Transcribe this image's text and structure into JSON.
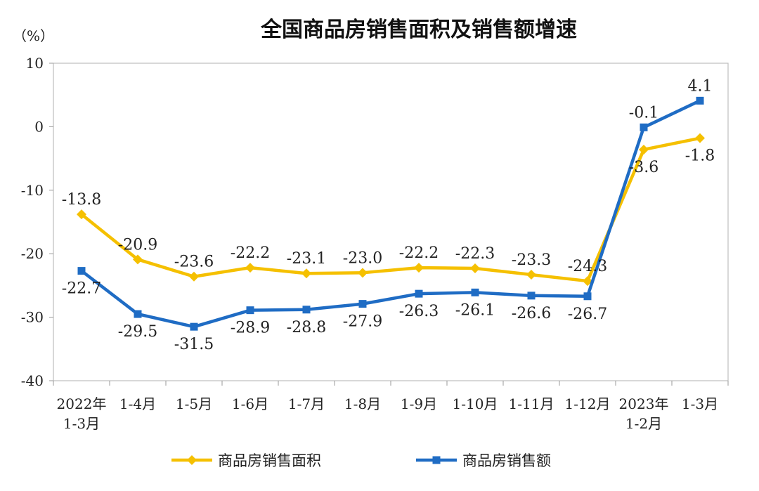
{
  "chart_data": {
    "type": "line",
    "title": "全国商品房销售面积及销售额增速",
    "unit_label": "（%）",
    "ylim": [
      -40,
      10
    ],
    "yticks": [
      "10",
      "0",
      "-10",
      "-20",
      "-30",
      "-40"
    ],
    "ytick_values": [
      10,
      0,
      -10,
      -20,
      -30,
      -40
    ],
    "categories": [
      [
        "2022年",
        "1-3月"
      ],
      [
        "1-4月"
      ],
      [
        "1-5月"
      ],
      [
        "1-6月"
      ],
      [
        "1-7月"
      ],
      [
        "1-8月"
      ],
      [
        "1-9月"
      ],
      [
        "1-10月"
      ],
      [
        "1-11月"
      ],
      [
        "1-12月"
      ],
      [
        "2023年",
        "1-2月"
      ],
      [
        "1-3月"
      ]
    ],
    "series": [
      {
        "name": "商品房销售面积",
        "color": "#F5C000",
        "marker": "diamond",
        "values": [
          -13.8,
          -20.9,
          -23.6,
          -22.2,
          -23.1,
          -23.0,
          -22.2,
          -22.3,
          -23.3,
          -24.3,
          -3.6,
          -1.8
        ],
        "labels": [
          "-13.8",
          "-20.9",
          "-23.6",
          "-22.2",
          "-23.1",
          "-23.0",
          "-22.2",
          "-22.3",
          "-23.3",
          "-24.3",
          "-3.6",
          "-1.8"
        ],
        "label_pos": [
          "above",
          "above",
          "above",
          "above",
          "above",
          "above",
          "above",
          "above",
          "above",
          "above",
          "below",
          "below"
        ]
      },
      {
        "name": "商品房销售额",
        "color": "#1F6CC4",
        "marker": "square",
        "values": [
          -22.7,
          -29.5,
          -31.5,
          -28.9,
          -28.8,
          -27.9,
          -26.3,
          -26.1,
          -26.6,
          -26.7,
          -0.1,
          4.1
        ],
        "labels": [
          "-22.7",
          "-29.5",
          "-31.5",
          "-28.9",
          "-28.8",
          "-27.9",
          "-26.3",
          "-26.1",
          "-26.6",
          "-26.7",
          "-0.1",
          "4.1"
        ],
        "label_pos": [
          "below",
          "below",
          "below",
          "below",
          "below",
          "below",
          "below",
          "below",
          "below",
          "below",
          "above",
          "above"
        ]
      }
    ],
    "grid": false,
    "legend_position": "bottom"
  }
}
